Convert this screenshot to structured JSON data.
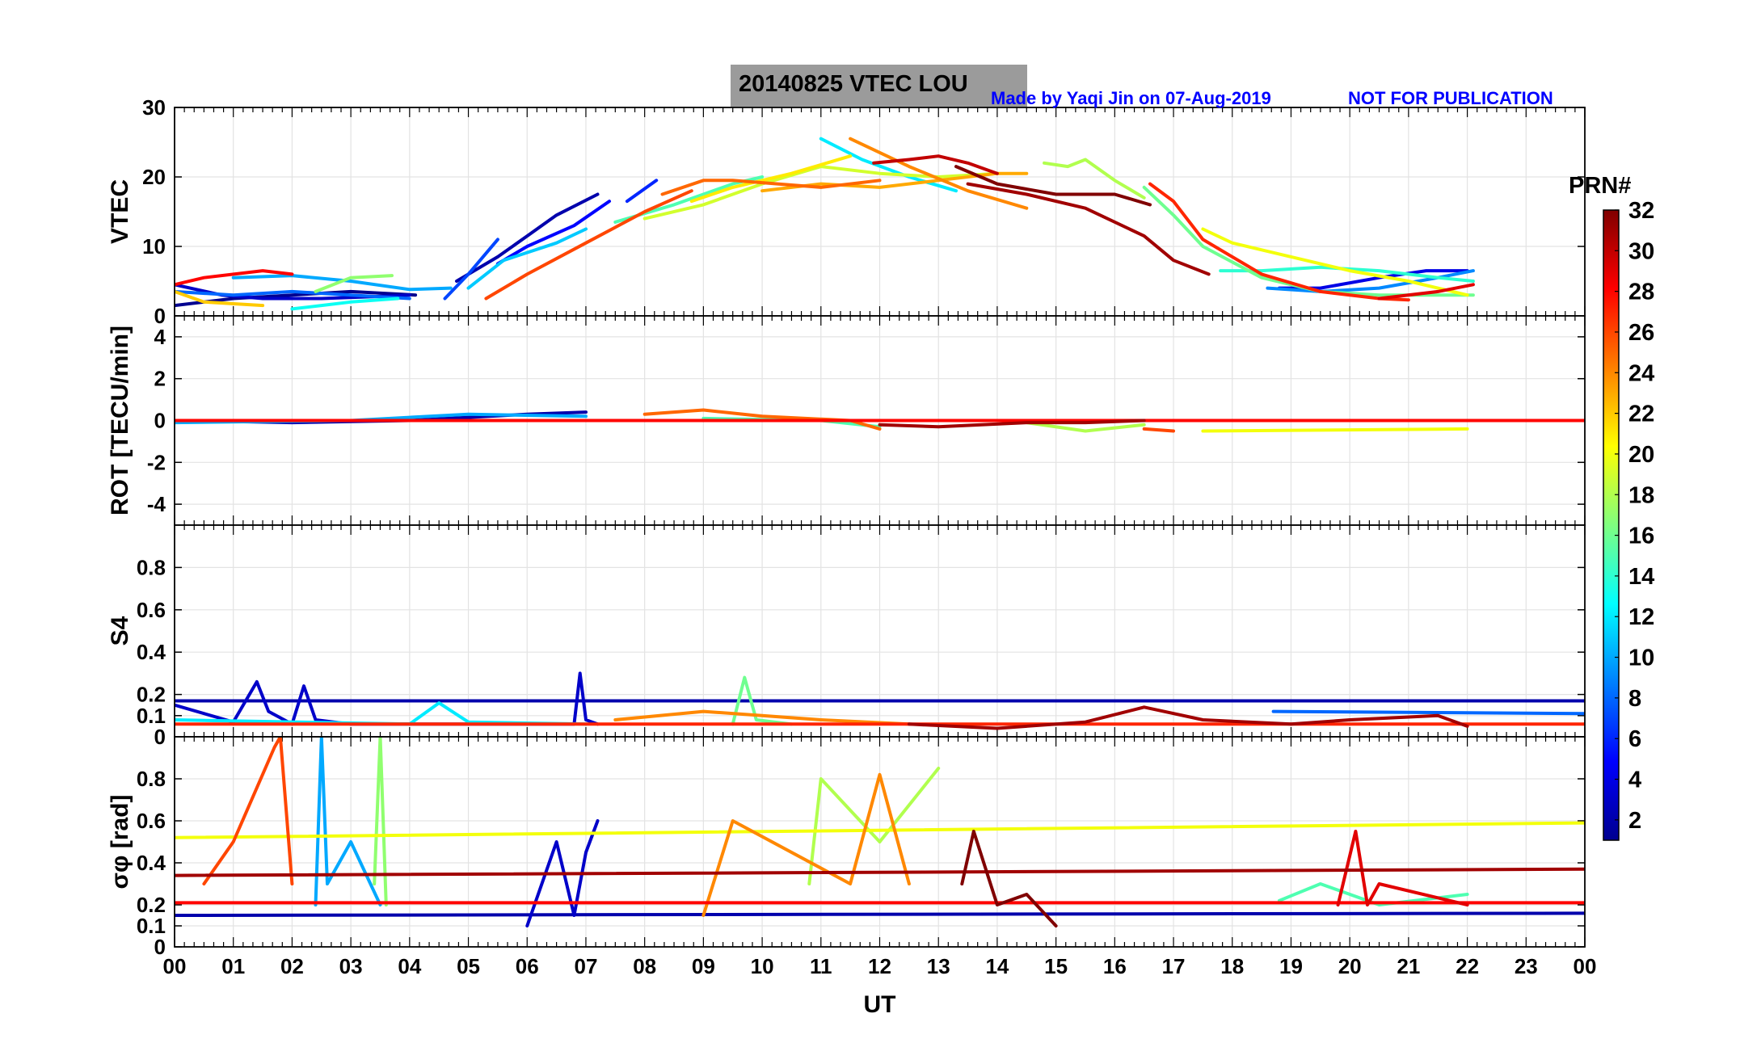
{
  "figure": {
    "title": "20140825    VTEC  LOU",
    "credit": "Made by Yaqi Jin on 07-Aug-2019",
    "notice": "NOT FOR PUBLICATION",
    "xlabel": "UT",
    "xticks": [
      "00",
      "01",
      "02",
      "03",
      "04",
      "05",
      "06",
      "07",
      "08",
      "09",
      "10",
      "11",
      "12",
      "13",
      "14",
      "15",
      "16",
      "17",
      "18",
      "19",
      "20",
      "21",
      "22",
      "23",
      "00"
    ],
    "colorbar": {
      "title": "PRN#",
      "ticks": [
        2,
        4,
        6,
        8,
        10,
        12,
        14,
        16,
        18,
        20,
        22,
        24,
        26,
        28,
        30,
        32
      ],
      "range": [
        1,
        32
      ],
      "colormap": "jet",
      "colors": [
        "#00008f",
        "#0000ff",
        "#0080ff",
        "#00ffff",
        "#80ff80",
        "#ffff00",
        "#ff8000",
        "#ff0000",
        "#800000"
      ]
    }
  },
  "chart_data": [
    {
      "type": "line",
      "panel": "vtec",
      "ylabel": "VTEC",
      "ylim": [
        0,
        30
      ],
      "yticks": [
        "0",
        "10",
        "20",
        "30"
      ],
      "xlim": [
        0,
        24
      ],
      "series": [
        {
          "prn": 1,
          "x": [
            0.0,
            1.0,
            2.0,
            3.0,
            4.1
          ],
          "y": [
            1.5,
            2.5,
            3.0,
            3.5,
            3.0
          ]
        },
        {
          "prn": 2,
          "x": [
            4.8,
            5.5,
            6.0,
            6.5,
            7.2
          ],
          "y": [
            5.0,
            8.5,
            11.5,
            14.5,
            17.5
          ]
        },
        {
          "prn": 3,
          "x": [
            0.0,
            0.8,
            1.5,
            2.5,
            3.5,
            4.0
          ],
          "y": [
            4.5,
            3.0,
            2.5,
            2.5,
            2.8,
            3.0
          ]
        },
        {
          "prn": 4,
          "x": [
            18.8,
            19.5,
            20.5,
            21.3,
            22.0
          ],
          "y": [
            4.0,
            4.0,
            5.5,
            6.5,
            6.5
          ]
        },
        {
          "prn": 5,
          "x": [
            5.5,
            6.0,
            6.8,
            7.4
          ],
          "y": [
            7.5,
            10.0,
            13.0,
            16.5
          ]
        },
        {
          "prn": 6,
          "x": [
            7.7,
            8.2
          ],
          "y": [
            16.5,
            19.5
          ]
        },
        {
          "prn": 7,
          "x": [
            4.6,
            5.0,
            5.5
          ],
          "y": [
            2.5,
            6.0,
            11.0
          ]
        },
        {
          "prn": 8,
          "x": [
            0.0,
            1.0,
            2.0,
            3.0,
            4.0
          ],
          "y": [
            3.5,
            3.0,
            3.5,
            3.0,
            2.5
          ]
        },
        {
          "prn": 9,
          "x": [
            18.6,
            19.5,
            20.5,
            21.5,
            22.1
          ],
          "y": [
            4.0,
            3.5,
            4.0,
            5.5,
            6.5
          ]
        },
        {
          "prn": 10,
          "x": [
            1.0,
            2.0,
            3.0,
            4.0,
            4.7
          ],
          "y": [
            5.5,
            5.8,
            5.0,
            3.8,
            4.0
          ]
        },
        {
          "prn": 11,
          "x": [
            5.0,
            5.6,
            6.5,
            7.0
          ],
          "y": [
            4.0,
            8.0,
            10.5,
            12.5
          ]
        },
        {
          "prn": 12,
          "x": [
            11.0,
            11.7,
            12.5,
            13.3
          ],
          "y": [
            25.5,
            22.5,
            20.0,
            18.0
          ]
        },
        {
          "prn": 13,
          "x": [
            2.0,
            2.5,
            3.0,
            3.8
          ],
          "y": [
            1.0,
            1.5,
            2.0,
            2.5
          ]
        },
        {
          "prn": 14,
          "x": [
            17.8,
            18.5,
            19.5,
            20.5,
            21.5,
            22.1
          ],
          "y": [
            6.5,
            6.5,
            7.0,
            6.5,
            5.5,
            5.0
          ]
        },
        {
          "prn": 15,
          "x": [
            7.5,
            8.5,
            9.5,
            10.0
          ],
          "y": [
            13.5,
            16.0,
            19.0,
            20.0
          ]
        },
        {
          "prn": 16,
          "x": [
            16.5,
            17.0,
            17.5,
            18.5,
            19.5,
            20.5,
            21.5,
            22.1
          ],
          "y": [
            18.5,
            14.5,
            10.0,
            5.5,
            3.5,
            3.0,
            3.0,
            3.0
          ]
        },
        {
          "prn": 17,
          "x": [
            2.4,
            3.0,
            3.7
          ],
          "y": [
            3.5,
            5.5,
            5.8
          ]
        },
        {
          "prn": 18,
          "x": [
            14.8,
            15.2,
            15.5,
            16.0,
            16.5
          ],
          "y": [
            22.0,
            21.5,
            22.5,
            19.5,
            17.0
          ]
        },
        {
          "prn": 19,
          "x": [
            8.0,
            9.0,
            10.0,
            11.0,
            12.0,
            13.0,
            14.0
          ],
          "y": [
            14.0,
            16.0,
            19.0,
            21.5,
            20.5,
            20.0,
            20.5
          ]
        },
        {
          "prn": 20,
          "x": [
            17.5,
            18.0,
            19.0,
            20.0,
            21.0,
            22.0
          ],
          "y": [
            12.5,
            10.5,
            8.5,
            6.5,
            5.0,
            3.0
          ]
        },
        {
          "prn": 21,
          "x": [
            8.8,
            9.5,
            10.5,
            11.5
          ],
          "y": [
            16.5,
            18.5,
            20.5,
            23.0
          ]
        },
        {
          "prn": 22,
          "x": [
            0.0,
            0.5,
            1.5
          ],
          "y": [
            3.5,
            2.0,
            1.5
          ]
        },
        {
          "prn": 23,
          "x": [
            10.0,
            11.0,
            12.0,
            13.0,
            14.0,
            14.5
          ],
          "y": [
            18.0,
            19.0,
            18.5,
            19.5,
            20.5,
            20.5
          ]
        },
        {
          "prn": 24,
          "x": [
            11.5,
            12.5,
            13.5,
            14.5
          ],
          "y": [
            25.5,
            21.5,
            18.0,
            15.5
          ]
        },
        {
          "prn": 25,
          "x": [
            8.3,
            9.0,
            9.5,
            11.0,
            12.0
          ],
          "y": [
            17.5,
            19.5,
            19.5,
            18.5,
            19.5
          ]
        },
        {
          "prn": 26,
          "x": [
            5.3,
            6.0,
            7.0,
            8.0,
            8.8
          ],
          "y": [
            2.5,
            6.0,
            10.5,
            15.0,
            18.0
          ]
        },
        {
          "prn": 27,
          "x": [
            16.6,
            17.0,
            17.5,
            18.5,
            19.5,
            20.5,
            21.0
          ],
          "y": [
            19.0,
            16.5,
            11.0,
            6.0,
            3.5,
            2.5,
            2.3
          ]
        },
        {
          "prn": 28,
          "x": [
            0.0,
            0.5,
            1.5,
            2.0
          ],
          "y": [
            4.5,
            5.5,
            6.5,
            6.0
          ]
        },
        {
          "prn": 29,
          "x": [
            20.5,
            21.5,
            22.1
          ],
          "y": [
            2.5,
            3.5,
            4.5
          ]
        },
        {
          "prn": 30,
          "x": [
            11.9,
            12.5,
            13.0,
            13.5,
            14.0
          ],
          "y": [
            22.0,
            22.5,
            23.0,
            22.0,
            20.5
          ]
        },
        {
          "prn": 31,
          "x": [
            13.5,
            14.5,
            15.5,
            16.5,
            17.0,
            17.6
          ],
          "y": [
            19.0,
            17.5,
            15.5,
            11.5,
            8.0,
            6.0
          ]
        },
        {
          "prn": 32,
          "x": [
            13.3,
            14.0,
            15.0,
            16.0,
            16.6
          ],
          "y": [
            21.5,
            19.0,
            17.5,
            17.5,
            16.0
          ]
        }
      ]
    },
    {
      "type": "line",
      "panel": "rot",
      "ylabel": "ROT [TECU/min]",
      "ylim": [
        -5,
        5
      ],
      "yticks": [
        "-4",
        "-2",
        "0",
        "2",
        "4"
      ],
      "xlim": [
        0,
        24
      ],
      "series": [
        {
          "prn": 2,
          "x": [
            0.0,
            2.0,
            4.0,
            6.0,
            7.0
          ],
          "y": [
            0.0,
            -0.1,
            0.0,
            0.3,
            0.4
          ]
        },
        {
          "prn": 10,
          "x": [
            0.0,
            3.0,
            5.0,
            7.0
          ],
          "y": [
            -0.1,
            0.0,
            0.3,
            0.2
          ]
        },
        {
          "prn": 15,
          "x": [
            9.0,
            11.0,
            12.0
          ],
          "y": [
            0.1,
            0.0,
            -0.3
          ]
        },
        {
          "prn": 18,
          "x": [
            14.5,
            15.5,
            16.5
          ],
          "y": [
            -0.1,
            -0.5,
            -0.2
          ]
        },
        {
          "prn": 20,
          "x": [
            17.5,
            22.0
          ],
          "y": [
            -0.5,
            -0.4
          ]
        },
        {
          "prn": 25,
          "x": [
            8.0,
            9.0,
            10.0,
            11.5,
            12.0
          ],
          "y": [
            0.3,
            0.5,
            0.2,
            0.0,
            -0.4
          ]
        },
        {
          "prn": 26,
          "x": [
            16.5,
            17.0
          ],
          "y": [
            -0.4,
            -0.5
          ]
        },
        {
          "prn": 28,
          "x": [
            0.0,
            24.0
          ],
          "y": [
            0.0,
            0.0
          ]
        },
        {
          "prn": 31,
          "x": [
            12.0,
            13.0,
            14.5,
            15.5,
            16.5
          ],
          "y": [
            -0.2,
            -0.3,
            -0.1,
            -0.1,
            0.0
          ]
        }
      ]
    },
    {
      "type": "line",
      "panel": "s4",
      "ylabel": "S4",
      "ylim": [
        0,
        1
      ],
      "yticks": [
        "0",
        "0.1",
        "0.2",
        "0.4",
        "0.6",
        "0.8"
      ],
      "xlim": [
        0,
        24
      ],
      "series": [
        {
          "prn": 2,
          "x": [
            0.0,
            24.0
          ],
          "y": [
            0.17,
            0.17
          ]
        },
        {
          "prn": 3,
          "x": [
            0.0,
            1.0,
            1.4,
            1.6,
            2.0,
            2.2,
            2.4,
            3.0,
            6.8,
            6.9,
            7.0,
            7.2
          ],
          "y": [
            0.15,
            0.07,
            0.26,
            0.12,
            0.06,
            0.24,
            0.08,
            0.06,
            0.06,
            0.3,
            0.08,
            0.06
          ]
        },
        {
          "prn": 8,
          "x": [
            18.7,
            24.0
          ],
          "y": [
            0.12,
            0.11
          ]
        },
        {
          "prn": 12,
          "x": [
            0.0,
            4.0,
            4.5,
            5.0,
            7.0
          ],
          "y": [
            0.08,
            0.06,
            0.16,
            0.07,
            0.06
          ]
        },
        {
          "prn": 16,
          "x": [
            9.5,
            9.7,
            9.9,
            10.5
          ],
          "y": [
            0.06,
            0.28,
            0.08,
            0.06
          ]
        },
        {
          "prn": 24,
          "x": [
            7.5,
            9.0,
            10.0,
            11.0,
            12.5
          ],
          "y": [
            0.08,
            0.12,
            0.1,
            0.08,
            0.06
          ]
        },
        {
          "prn": 27,
          "x": [
            0.0,
            24.0
          ],
          "y": [
            0.06,
            0.06
          ]
        },
        {
          "prn": 31,
          "x": [
            12.5,
            14.0,
            15.5,
            16.5,
            17.5,
            19.0,
            20.0,
            21.5,
            22.0
          ],
          "y": [
            0.06,
            0.04,
            0.07,
            0.14,
            0.08,
            0.06,
            0.08,
            0.1,
            0.05
          ]
        }
      ]
    },
    {
      "type": "line",
      "panel": "sigma_phi",
      "ylabel": "σφ [rad]",
      "ylim": [
        0,
        1
      ],
      "yticks": [
        "0",
        "0.1",
        "0.2",
        "0.4",
        "0.6",
        "0.8"
      ],
      "xlim": [
        0,
        24
      ],
      "series": [
        {
          "prn": 2,
          "x": [
            0.0,
            24.0
          ],
          "y": [
            0.15,
            0.16
          ]
        },
        {
          "prn": 3,
          "x": [
            6.0,
            6.5,
            6.8,
            7.0,
            7.2
          ],
          "y": [
            0.1,
            0.5,
            0.15,
            0.45,
            0.6
          ]
        },
        {
          "prn": 10,
          "x": [
            2.4,
            2.5,
            2.6,
            3.0,
            3.5
          ],
          "y": [
            0.2,
            1.0,
            0.3,
            0.5,
            0.2
          ]
        },
        {
          "prn": 15,
          "x": [
            18.8,
            19.5,
            20.5,
            22.0
          ],
          "y": [
            0.22,
            0.3,
            0.2,
            0.25
          ]
        },
        {
          "prn": 17,
          "x": [
            3.4,
            3.5,
            3.6
          ],
          "y": [
            0.3,
            1.0,
            0.2
          ]
        },
        {
          "prn": 18,
          "x": [
            10.8,
            11.0,
            12.0,
            13.0
          ],
          "y": [
            0.3,
            0.8,
            0.5,
            0.85
          ]
        },
        {
          "prn": 20,
          "x": [
            0.0,
            24.0
          ],
          "y": [
            0.52,
            0.59
          ]
        },
        {
          "prn": 24,
          "x": [
            9.0,
            9.5,
            11.5,
            12.0,
            12.5
          ],
          "y": [
            0.15,
            0.6,
            0.3,
            0.82,
            0.3
          ]
        },
        {
          "prn": 26,
          "x": [
            0.5,
            1.0,
            1.7,
            1.8,
            2.0
          ],
          "y": [
            0.3,
            0.5,
            0.95,
            1.0,
            0.3
          ]
        },
        {
          "prn": 28,
          "x": [
            0.0,
            24.0
          ],
          "y": [
            0.21,
            0.21
          ]
        },
        {
          "prn": 29,
          "x": [
            19.8,
            20.1,
            20.3,
            20.5,
            22.0
          ],
          "y": [
            0.2,
            0.55,
            0.2,
            0.3,
            0.2
          ]
        },
        {
          "prn": 31,
          "x": [
            0.0,
            24.0
          ],
          "y": [
            0.34,
            0.37
          ]
        },
        {
          "prn": 32,
          "x": [
            13.4,
            13.6,
            14.0,
            14.5,
            15.0
          ],
          "y": [
            0.3,
            0.55,
            0.2,
            0.25,
            0.1
          ]
        }
      ]
    }
  ]
}
